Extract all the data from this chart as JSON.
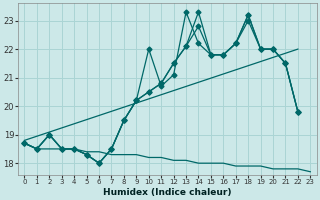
{
  "xlabel": "Humidex (Indice chaleur)",
  "bg_color": "#cce8e8",
  "grid_color": "#aad4d4",
  "line_color": "#006868",
  "xlim": [
    -0.5,
    23.5
  ],
  "ylim": [
    17.6,
    23.6
  ],
  "yticks": [
    18,
    19,
    20,
    21,
    22,
    23
  ],
  "xticks": [
    0,
    1,
    2,
    3,
    4,
    5,
    6,
    7,
    8,
    9,
    10,
    11,
    12,
    13,
    14,
    15,
    16,
    17,
    18,
    19,
    20,
    21,
    22,
    23
  ],
  "line_a_x": [
    0,
    1,
    2,
    3,
    4,
    5,
    6,
    7,
    8,
    9,
    10,
    11,
    12,
    13,
    14,
    15,
    16,
    17,
    18,
    19,
    20,
    21,
    22
  ],
  "line_a_y": [
    18.7,
    18.5,
    19.0,
    18.5,
    18.5,
    18.3,
    18.0,
    18.5,
    19.5,
    20.2,
    22.0,
    20.7,
    21.1,
    23.3,
    22.2,
    21.8,
    21.8,
    22.2,
    23.2,
    22.0,
    22.0,
    21.5,
    19.8
  ],
  "line_b_x": [
    0,
    1,
    2,
    3,
    4,
    5,
    6,
    7,
    8,
    9,
    10,
    11,
    12,
    13,
    14,
    15,
    16,
    17,
    18,
    19,
    20,
    21,
    22
  ],
  "line_b_y": [
    18.7,
    18.5,
    19.0,
    18.5,
    18.5,
    18.3,
    18.0,
    18.5,
    19.5,
    20.2,
    20.5,
    20.8,
    21.5,
    22.1,
    23.3,
    21.8,
    21.8,
    22.2,
    23.2,
    22.0,
    22.0,
    21.5,
    19.8
  ],
  "line_c_x": [
    0,
    1,
    2,
    3,
    4,
    5,
    6,
    7,
    8,
    9,
    10,
    11,
    12,
    13,
    14,
    15,
    16,
    17,
    18,
    19,
    20,
    21,
    22
  ],
  "line_c_y": [
    18.7,
    18.5,
    19.0,
    18.5,
    18.5,
    18.3,
    18.0,
    18.5,
    19.5,
    20.2,
    20.5,
    20.8,
    21.5,
    22.1,
    22.8,
    21.8,
    21.8,
    22.2,
    23.0,
    22.0,
    22.0,
    21.5,
    19.8
  ],
  "trend_x": [
    0,
    22
  ],
  "trend_y": [
    18.8,
    22.0
  ],
  "flat_x": [
    0,
    1,
    2,
    3,
    4,
    5,
    6,
    7,
    8,
    9,
    10,
    11,
    12,
    13,
    14,
    15,
    16,
    17,
    18,
    19,
    20,
    21,
    22,
    23
  ],
  "flat_y": [
    18.7,
    18.5,
    18.5,
    18.5,
    18.5,
    18.4,
    18.4,
    18.3,
    18.3,
    18.3,
    18.2,
    18.2,
    18.1,
    18.1,
    18.0,
    18.0,
    18.0,
    17.9,
    17.9,
    17.9,
    17.8,
    17.8,
    17.8,
    17.7
  ]
}
